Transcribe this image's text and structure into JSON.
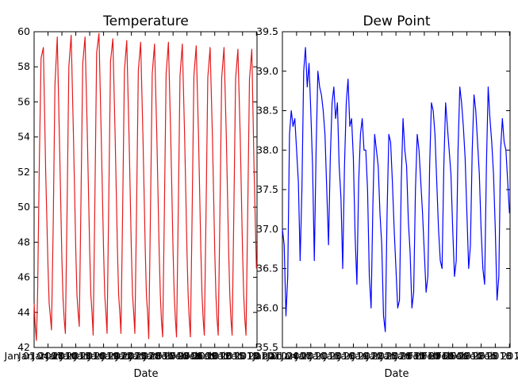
{
  "chart_data": [
    {
      "type": "line",
      "title": "Temperature",
      "xlabel": "Date",
      "ylabel": "",
      "ylim": [
        42,
        60
      ],
      "yticks": [
        "42",
        "44",
        "46",
        "48",
        "50",
        "52",
        "54",
        "56",
        "58",
        "60"
      ],
      "xlim": [
        0,
        385
      ],
      "xtick_labels": [
        "Jan 01 2010",
        "Jan 04 2010",
        "Jan 07 2010",
        "Jan 10 2010",
        "Jan 13 2010",
        "Jan 16 2010",
        "Jan 19 2010",
        "Jan 22 2010",
        "Jan 25 2010",
        "Jan 28 2010",
        "Jan 31 2010",
        "Feb 03 2010",
        "Feb 06 2010",
        "Feb 09 2010",
        "Feb 12 2010",
        "Feb 15 2010",
        "Feb 18 2010"
      ],
      "xticks": [
        0,
        24,
        48,
        72,
        96,
        120,
        144,
        168,
        192,
        216,
        240,
        264,
        288,
        312,
        336,
        360,
        384
      ],
      "visible_tick_text": [
        "Jan 01 2010",
        "Jan 13 2010",
        "2010"
      ],
      "color": "#e31a1c",
      "series": [
        {
          "x": [
            0,
            2,
            4,
            6,
            9,
            12,
            16,
            20,
            24,
            26,
            28,
            30,
            33,
            36,
            40,
            44,
            48,
            50,
            52,
            54,
            57,
            60,
            64,
            68,
            72,
            74,
            76,
            78,
            81,
            84,
            88,
            92,
            96,
            98,
            100,
            102,
            105,
            108,
            112,
            116,
            120,
            122,
            124,
            126,
            129,
            132,
            136,
            140,
            144,
            146,
            148,
            150,
            153,
            156,
            160,
            164,
            168,
            170,
            172,
            174,
            177,
            180,
            184,
            188,
            192,
            194,
            196,
            198,
            201,
            204,
            208,
            212,
            216,
            218,
            220,
            222,
            225,
            228,
            232,
            236,
            240,
            242,
            244,
            246,
            249,
            252,
            256,
            260,
            264,
            266,
            268,
            270,
            273,
            276,
            280,
            284,
            288,
            290,
            292,
            294,
            297,
            300,
            304,
            308,
            312,
            314,
            316,
            318,
            321,
            324,
            328,
            332,
            336,
            338,
            340,
            342,
            345,
            348,
            352,
            356,
            360,
            362,
            364,
            366,
            369,
            372,
            376,
            380,
            384
          ],
          "values": [
            44.5,
            43.2,
            42.4,
            45.0,
            52.5,
            58.5,
            59.1,
            52.0,
            46.6,
            44.5,
            43.8,
            43.0,
            49.0,
            57.0,
            59.7,
            53.5,
            47.0,
            44.8,
            43.6,
            42.8,
            50.0,
            58.0,
            59.8,
            54.0,
            47.5,
            45.0,
            44.0,
            43.2,
            50.5,
            58.2,
            59.7,
            54.0,
            47.5,
            45.0,
            44.0,
            42.7,
            50.5,
            58.8,
            59.9,
            54.0,
            47.5,
            45.0,
            44.0,
            42.8,
            50.5,
            58.3,
            59.6,
            54.0,
            47.5,
            45.0,
            44.0,
            42.8,
            50.0,
            57.8,
            59.5,
            54.0,
            47.5,
            45.0,
            44.0,
            42.8,
            50.0,
            57.8,
            59.4,
            54.0,
            47.5,
            45.0,
            44.0,
            42.5,
            49.8,
            57.6,
            59.3,
            54.0,
            47.5,
            45.0,
            43.5,
            42.6,
            49.8,
            57.6,
            59.4,
            54.0,
            47.5,
            45.0,
            43.6,
            42.6,
            49.8,
            57.5,
            59.3,
            54.0,
            47.5,
            45.0,
            43.6,
            42.6,
            49.8,
            57.5,
            59.2,
            54.0,
            47.5,
            45.0,
            43.6,
            42.7,
            49.8,
            57.4,
            59.1,
            54.0,
            47.5,
            45.0,
            43.6,
            42.7,
            49.8,
            57.4,
            59.1,
            54.0,
            47.5,
            45.0,
            43.6,
            42.7,
            49.8,
            57.3,
            59.0,
            54.0,
            47.5,
            45.0,
            43.6,
            42.7,
            49.8,
            57.3,
            59.0,
            52.0,
            46.5
          ]
        }
      ]
    },
    {
      "type": "line",
      "title": "Dew Point",
      "xlabel": "Date",
      "ylabel": "",
      "ylim": [
        35.5,
        39.5
      ],
      "yticks": [
        "35.5",
        "36.0",
        "36.5",
        "37.0",
        "37.5",
        "38.0",
        "38.5",
        "39.0",
        "39.5"
      ],
      "xlim": [
        0,
        385
      ],
      "xtick_labels": [
        "Jan 01 2010",
        "Jan 04 2010",
        "Jan 07 2010",
        "Jan 10 2010",
        "Jan 13 2010",
        "Jan 16 2010",
        "Jan 19 2010",
        "Jan 22 2010",
        "Jan 25 2010",
        "Jan 28 2010",
        "Jan 31 2010",
        "Feb 03 2010",
        "Feb 06 2010",
        "Feb 09 2010",
        "Feb 12 2010",
        "Feb 15 2010",
        "Feb 18 2010"
      ],
      "xticks": [
        0,
        24,
        48,
        72,
        96,
        120,
        144,
        168,
        192,
        216,
        240,
        264,
        288,
        312,
        336,
        360,
        384
      ],
      "visible_tick_text": [
        "Jan 01 2010",
        "Jan 13 2010",
        "2010"
      ],
      "color": "#0000ff",
      "series": [
        {
          "x": [
            0,
            3,
            6,
            9,
            12,
            15,
            18,
            21,
            24,
            27,
            30,
            33,
            36,
            39,
            42,
            45,
            48,
            51,
            54,
            57,
            60,
            63,
            66,
            69,
            72,
            75,
            78,
            81,
            84,
            87,
            90,
            93,
            96,
            99,
            102,
            105,
            108,
            111,
            114,
            117,
            120,
            123,
            126,
            129,
            132,
            135,
            138,
            141,
            144,
            147,
            150,
            153,
            156,
            159,
            162,
            165,
            168,
            171,
            174,
            177,
            180,
            183,
            186,
            189,
            192,
            195,
            198,
            201,
            204,
            207,
            210,
            213,
            216,
            219,
            222,
            225,
            228,
            231,
            234,
            237,
            240,
            243,
            246,
            249,
            252,
            255,
            258,
            261,
            264,
            267,
            270,
            273,
            276,
            279,
            282,
            285,
            288,
            291,
            294,
            297,
            300,
            303,
            306,
            309,
            312,
            315,
            318,
            321,
            324,
            327,
            330,
            333,
            336,
            339,
            342,
            345,
            348,
            351,
            354,
            357,
            360,
            363,
            366,
            369,
            372,
            375,
            378,
            381,
            384
          ],
          "values": [
            37.0,
            36.8,
            35.9,
            36.4,
            38.2,
            38.5,
            38.3,
            38.4,
            38.0,
            37.6,
            36.6,
            37.5,
            39.0,
            39.3,
            38.8,
            39.1,
            38.5,
            37.8,
            36.6,
            38.0,
            39.0,
            38.8,
            38.7,
            38.5,
            38.2,
            37.5,
            36.8,
            37.9,
            38.6,
            38.8,
            38.4,
            38.6,
            37.8,
            37.4,
            36.5,
            37.8,
            38.6,
            38.9,
            38.3,
            38.4,
            37.9,
            36.9,
            36.3,
            37.6,
            38.2,
            38.4,
            38.0,
            38.0,
            37.5,
            36.4,
            36.0,
            37.3,
            38.2,
            38.0,
            37.8,
            37.2,
            36.8,
            35.9,
            35.7,
            37.2,
            38.2,
            38.1,
            37.6,
            37.0,
            36.5,
            36.0,
            36.1,
            37.6,
            38.4,
            38.0,
            37.8,
            37.1,
            36.7,
            36.0,
            36.2,
            37.5,
            38.2,
            38.0,
            37.6,
            37.2,
            36.7,
            36.2,
            36.4,
            37.8,
            38.6,
            38.5,
            38.2,
            37.6,
            37.0,
            36.6,
            36.5,
            37.8,
            38.6,
            38.3,
            38.0,
            37.7,
            37.0,
            36.4,
            36.6,
            38.0,
            38.8,
            38.6,
            38.3,
            37.9,
            37.2,
            36.5,
            36.8,
            38.0,
            38.7,
            38.5,
            38.1,
            37.7,
            37.0,
            36.5,
            36.3,
            37.8,
            38.8,
            38.4,
            38.1,
            37.7,
            37.0,
            36.1,
            36.4,
            38.0,
            38.4,
            38.1,
            38.0,
            37.6,
            37.2
          ]
        }
      ]
    }
  ]
}
